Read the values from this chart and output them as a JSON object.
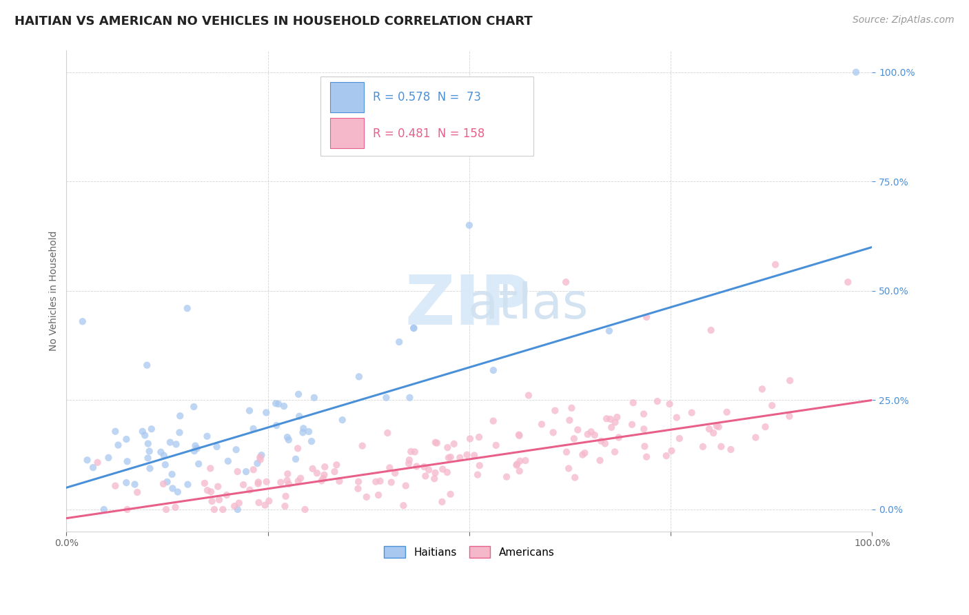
{
  "title": "HAITIAN VS AMERICAN NO VEHICLES IN HOUSEHOLD CORRELATION CHART",
  "source": "Source: ZipAtlas.com",
  "ylabel": "No Vehicles in Household",
  "haitian_R": 0.578,
  "haitian_N": 73,
  "american_R": 0.481,
  "american_N": 158,
  "haitian_color": "#a8c8f0",
  "american_color": "#f5b8cb",
  "haitian_line_color": "#4a90d9",
  "american_line_color": "#e8608a",
  "background_color": "#ffffff",
  "watermark_zip_color": "#dce8f5",
  "watermark_atlas_color": "#c8ddf0",
  "grid_color": "#d0d0d0",
  "tick_label_color": "#4a90d9",
  "axis_label_color": "#666666",
  "title_color": "#222222",
  "source_color": "#999999",
  "legend_border_color": "#cccccc",
  "haitian_line_intercept": 0.05,
  "haitian_line_slope": 0.55,
  "american_line_intercept": -0.02,
  "american_line_slope": 0.27,
  "xlim": [
    0.0,
    1.0
  ],
  "ylim": [
    -0.05,
    1.05
  ],
  "yticks": [
    0.0,
    0.25,
    0.5,
    0.75,
    1.0
  ],
  "ytick_labels": [
    "0.0%",
    "25.0%",
    "50.0%",
    "75.0%",
    "100.0%"
  ],
  "xtick_labels_show": [
    "0.0%",
    "100.0%"
  ],
  "haitian_seed": 42,
  "american_seed": 99,
  "title_fontsize": 13,
  "source_fontsize": 10,
  "axis_fontsize": 10,
  "tick_fontsize": 10,
  "legend_fontsize": 12,
  "scatter_size": 55,
  "scatter_alpha": 0.75,
  "line_width": 2.2
}
